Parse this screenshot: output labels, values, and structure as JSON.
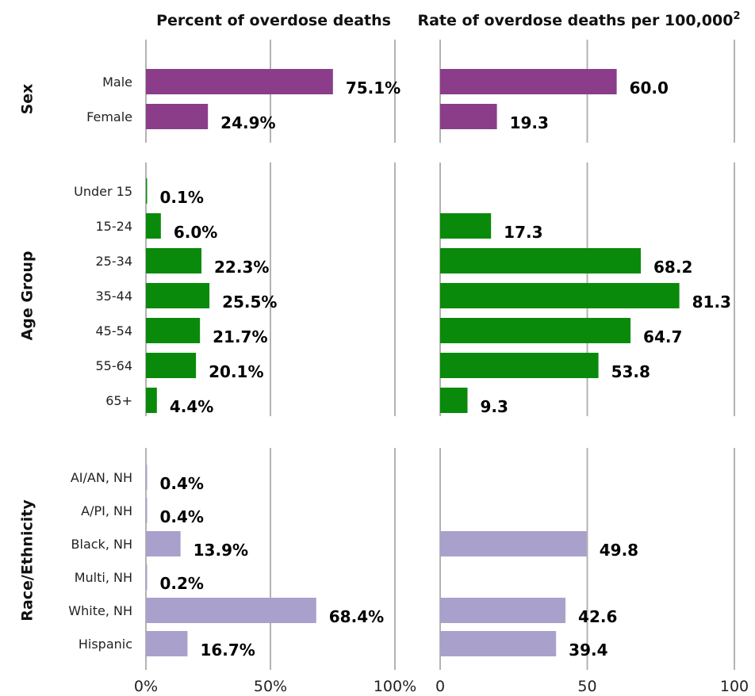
{
  "chart_data": {
    "type": "bar",
    "orientation": "horizontal",
    "panels": [
      {
        "title": "Percent of overdose deaths",
        "tick_labels": [
          "0%",
          "50%",
          "100%"
        ],
        "ticks": [
          0,
          50,
          100
        ],
        "xlim": [
          0,
          100
        ],
        "value_suffix": "%"
      },
      {
        "title": "Rate of overdose deaths per 100,000",
        "title_superscript": "2",
        "tick_labels": [
          "0",
          "50",
          "100"
        ],
        "ticks": [
          0,
          50,
          100
        ],
        "xlim": [
          0,
          100
        ],
        "value_suffix": ""
      }
    ],
    "groups": [
      {
        "name": "Sex",
        "color": "#8b3d8a",
        "categories": [
          "Male",
          "Female"
        ],
        "percent": [
          75.1,
          24.9
        ],
        "percent_labels": [
          "75.1%",
          "24.9%"
        ],
        "rate": [
          60.0,
          19.3
        ],
        "rate_labels": [
          "60.0",
          "19.3"
        ]
      },
      {
        "name": "Age Group",
        "color": "#0a8a0a",
        "categories": [
          "Under 15",
          "15-24",
          "25-34",
          "35-44",
          "45-54",
          "55-64",
          "65+"
        ],
        "percent": [
          0.1,
          6.0,
          22.3,
          25.5,
          21.7,
          20.1,
          4.4
        ],
        "percent_labels": [
          "0.1%",
          "6.0%",
          "22.3%",
          "25.5%",
          "21.7%",
          "20.1%",
          "4.4%"
        ],
        "rate": [
          null,
          17.3,
          68.2,
          81.3,
          64.7,
          53.8,
          9.3
        ],
        "rate_labels": [
          null,
          "17.3",
          "68.2",
          "81.3",
          "64.7",
          "53.8",
          "9.3"
        ]
      },
      {
        "name": "Race/Ethnicity",
        "color": "#a9a1cc",
        "categories": [
          "AI/AN, NH",
          "A/PI, NH",
          "Black, NH",
          "Multi, NH",
          "White, NH",
          "Hispanic"
        ],
        "percent": [
          0.4,
          0.4,
          13.9,
          0.2,
          68.4,
          16.7
        ],
        "percent_labels": [
          "0.4%",
          "0.4%",
          "13.9%",
          "0.2%",
          "68.4%",
          "16.7%"
        ],
        "rate": [
          null,
          null,
          49.8,
          null,
          42.6,
          39.4
        ],
        "rate_labels": [
          null,
          null,
          "49.8",
          null,
          "42.6",
          "39.4"
        ]
      }
    ],
    "grid": true,
    "legend": "none"
  }
}
